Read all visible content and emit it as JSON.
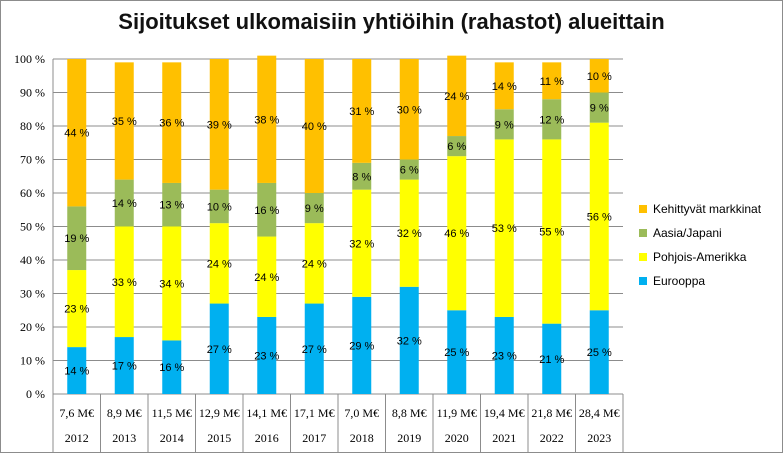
{
  "chart_data": {
    "type": "bar",
    "stacked": true,
    "normalized": true,
    "title": "Sijoitukset ulkomaisiin yhtiöihin (rahastot) alueittain",
    "xlabel": "",
    "ylabel": "",
    "ylim": [
      0,
      100
    ],
    "y_ticks": [
      "0 %",
      "10 %",
      "20 %",
      "30 %",
      "40 %",
      "50 %",
      "60 %",
      "70 %",
      "80 %",
      "90 %",
      "100 %"
    ],
    "grid": true,
    "legend_position": "right",
    "categories": [
      "2012",
      "2013",
      "2014",
      "2015",
      "2016",
      "2017",
      "2018",
      "2019",
      "2020",
      "2021",
      "2022",
      "2023"
    ],
    "category_amounts": [
      "7,6 M€",
      "8,9 M€",
      "11,5 M€",
      "12,9 M€",
      "14,1 M€",
      "17,1 M€",
      "7,0 M€",
      "8,8 M€",
      "11,9 M€",
      "19,4 M€",
      "21,8 M€",
      "28,4 M€"
    ],
    "series": [
      {
        "name": "Eurooppa",
        "color": "#00b0f0",
        "values": [
          14,
          17,
          16,
          27,
          23,
          27,
          29,
          32,
          25,
          23,
          21,
          25
        ]
      },
      {
        "name": "Pohjois-Amerikka",
        "color": "#ffff00",
        "values": [
          23,
          33,
          34,
          24,
          24,
          24,
          32,
          32,
          46,
          53,
          55,
          56
        ]
      },
      {
        "name": "Aasia/Japani",
        "color": "#9bbb59",
        "values": [
          19,
          14,
          13,
          10,
          16,
          9,
          8,
          6,
          6,
          9,
          12,
          9
        ]
      },
      {
        "name": "Kehittyvät markkinat",
        "color": "#ffc000",
        "values": [
          44,
          35,
          36,
          39,
          38,
          40,
          31,
          30,
          24,
          14,
          11,
          10
        ]
      }
    ],
    "label_suffix": " %"
  }
}
